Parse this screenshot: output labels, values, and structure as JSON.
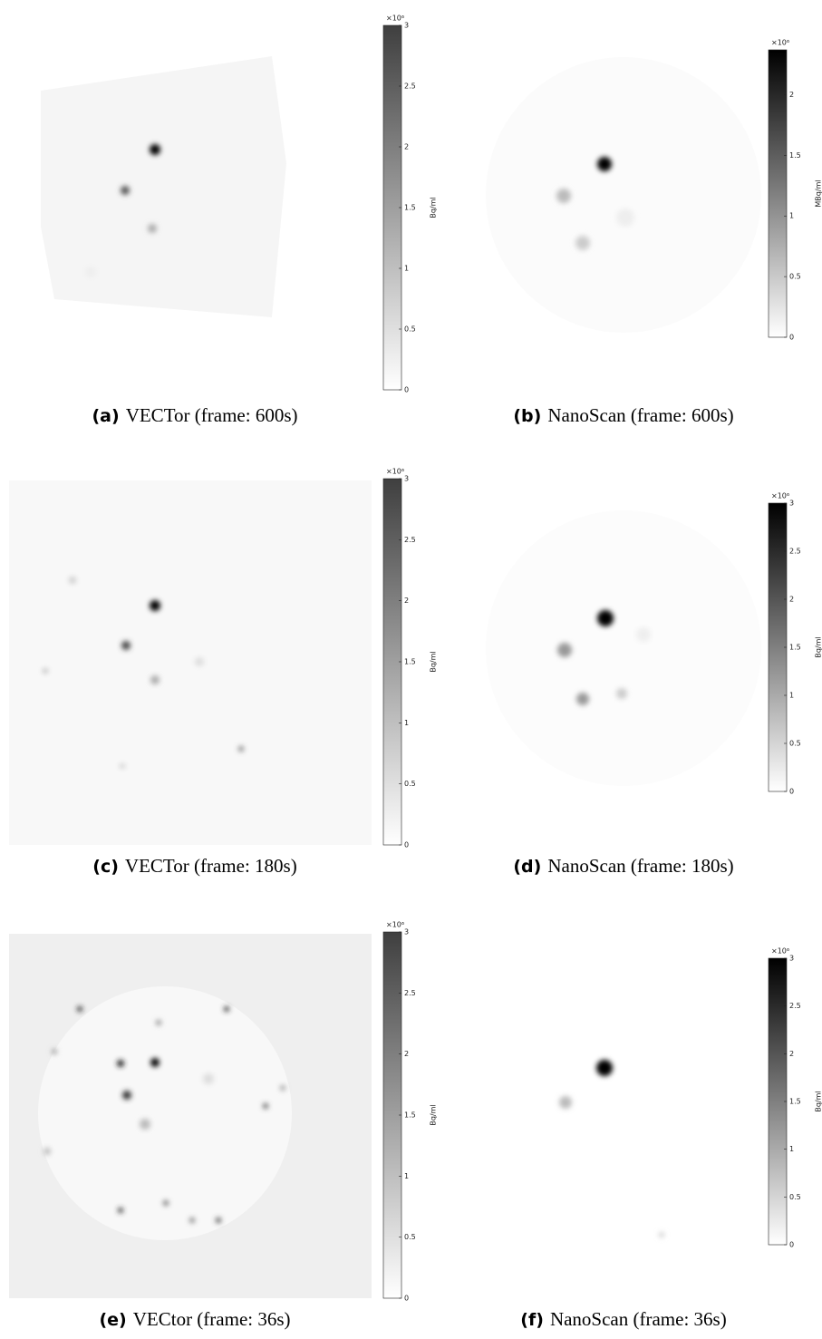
{
  "panels": [
    {
      "label": "(a)",
      "caption": "VECTor (frame: 600s)",
      "colorbar": {
        "exponent": "×10⁶",
        "label": "Bq/ml",
        "range": [
          0,
          3
        ],
        "ticks": [
          0,
          0.5,
          1,
          1.5,
          2,
          2.5,
          3
        ]
      }
    },
    {
      "label": "(b)",
      "caption": "NanoScan (frame: 600s)",
      "colorbar": {
        "exponent": "×10⁶",
        "label": "MBq/ml",
        "range": [
          0,
          2.37
        ],
        "ticks": [
          0,
          0.5,
          1,
          1.5,
          2
        ]
      }
    },
    {
      "label": "(c)",
      "caption": "VECTor (frame: 180s)",
      "colorbar": {
        "exponent": "×10⁶",
        "label": "Bq/ml",
        "range": [
          0,
          3
        ],
        "ticks": [
          0,
          0.5,
          1,
          1.5,
          2,
          2.5,
          3
        ]
      }
    },
    {
      "label": "(d)",
      "caption": "NanoScan (frame: 180s)",
      "colorbar": {
        "exponent": "×10⁶",
        "label": "Bq/ml",
        "range": [
          0,
          3
        ],
        "ticks": [
          0,
          0.5,
          1,
          1.5,
          2,
          2.5,
          3
        ]
      }
    },
    {
      "label": "(e)",
      "caption": "VECtor (frame: 36s)",
      "colorbar": {
        "exponent": "×10⁶",
        "label": "Bq/ml",
        "range": [
          0,
          3
        ],
        "ticks": [
          0,
          0.5,
          1,
          1.5,
          2,
          2.5,
          3
        ]
      }
    },
    {
      "label": "(f)",
      "caption": "NanoScan (frame: 36s)",
      "colorbar": {
        "exponent": "×10⁶",
        "label": "Bq/ml",
        "range": [
          0,
          3
        ],
        "ticks": [
          0,
          0.5,
          1,
          1.5,
          2,
          2.5,
          3
        ]
      }
    }
  ]
}
